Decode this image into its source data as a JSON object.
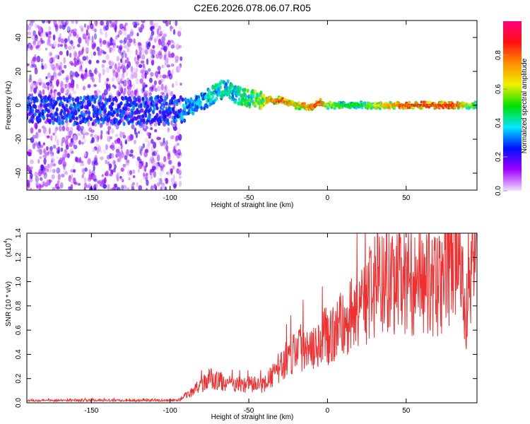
{
  "chart_data": [
    {
      "type": "heatmap",
      "title": "C2E6.2026.078.06.07.R05",
      "xlabel": "Height of straight line (km)",
      "ylabel": "Frequency (Hz)",
      "xlim": [
        -191,
        95
      ],
      "ylim": [
        -50,
        50
      ],
      "xticks": [
        "-150",
        "-100",
        "-50",
        "0",
        "50"
      ],
      "xtick_values": [
        -150,
        -100,
        -50,
        0,
        50
      ],
      "yticks": [
        "40",
        "20",
        "0",
        "-20",
        "-40"
      ],
      "ytick_values": [
        40,
        20,
        0,
        -20,
        -40
      ],
      "colorbar": {
        "label": "Normalized spectral amplitude",
        "range": [
          0,
          1
        ],
        "ticks": [
          "0.0",
          "0.2",
          "0.4",
          "0.6",
          "0.8"
        ],
        "tick_values": [
          0,
          0.2,
          0.4,
          0.6,
          0.8
        ],
        "colormap": [
          "#f0e0ff",
          "#a000ff",
          "#0010ff",
          "#00e8ff",
          "#00e000",
          "#f0f000",
          "#ff9000",
          "#ff1010",
          "#ff0080"
        ]
      },
      "ridge": {
        "x": [
          -191,
          -150,
          -100,
          -90,
          -80,
          -70,
          -65,
          -55,
          -45,
          -30,
          -20,
          -10,
          -5,
          0,
          10,
          20,
          50,
          80,
          95
        ],
        "freq": [
          -3,
          -3,
          -3,
          -2,
          2,
          8,
          10,
          5,
          3,
          3,
          0,
          -1,
          2,
          0,
          0,
          0,
          0,
          0,
          0
        ],
        "amplitude": [
          0.3,
          0.3,
          0.3,
          0.35,
          0.4,
          0.45,
          0.45,
          0.45,
          0.6,
          0.85,
          0.7,
          0.8,
          0.85,
          0.6,
          0.5,
          0.5,
          0.85,
          0.85,
          0.5
        ]
      },
      "diffuse_region": {
        "x": [
          -191,
          -93
        ],
        "amplitude": 0.15
      }
    },
    {
      "type": "line",
      "xlabel": "Height of straight line (km)",
      "ylabel": "SNR (10 * v/v)",
      "scale_label": "(x10",
      "scale_exp": "4",
      "scale_close": ")",
      "xlim": [
        -191,
        95
      ],
      "ylim": [
        0,
        1.4
      ],
      "xticks": [
        "-150",
        "-100",
        "-50",
        "0",
        "50"
      ],
      "xtick_values": [
        -150,
        -100,
        -50,
        0,
        50
      ],
      "yticks": [
        "0.0",
        "0.2",
        "0.4",
        "0.6",
        "0.8",
        "1.0",
        "1.2",
        "1.4"
      ],
      "ytick_values": [
        0,
        0.2,
        0.4,
        0.6,
        0.8,
        1.0,
        1.2,
        1.4
      ],
      "color": "#f03030",
      "envelope": {
        "x": [
          -191,
          -95,
          -85,
          -75,
          -60,
          -40,
          -30,
          -20,
          -10,
          0,
          10,
          20,
          30,
          40,
          60,
          70,
          80,
          85,
          88,
          92,
          95
        ],
        "y": [
          0.02,
          0.02,
          0.1,
          0.2,
          0.15,
          0.15,
          0.3,
          0.45,
          0.5,
          0.55,
          0.65,
          0.8,
          0.95,
          1.0,
          1.0,
          0.95,
          1.15,
          1.0,
          0.7,
          1.1,
          1.2
        ]
      }
    }
  ]
}
